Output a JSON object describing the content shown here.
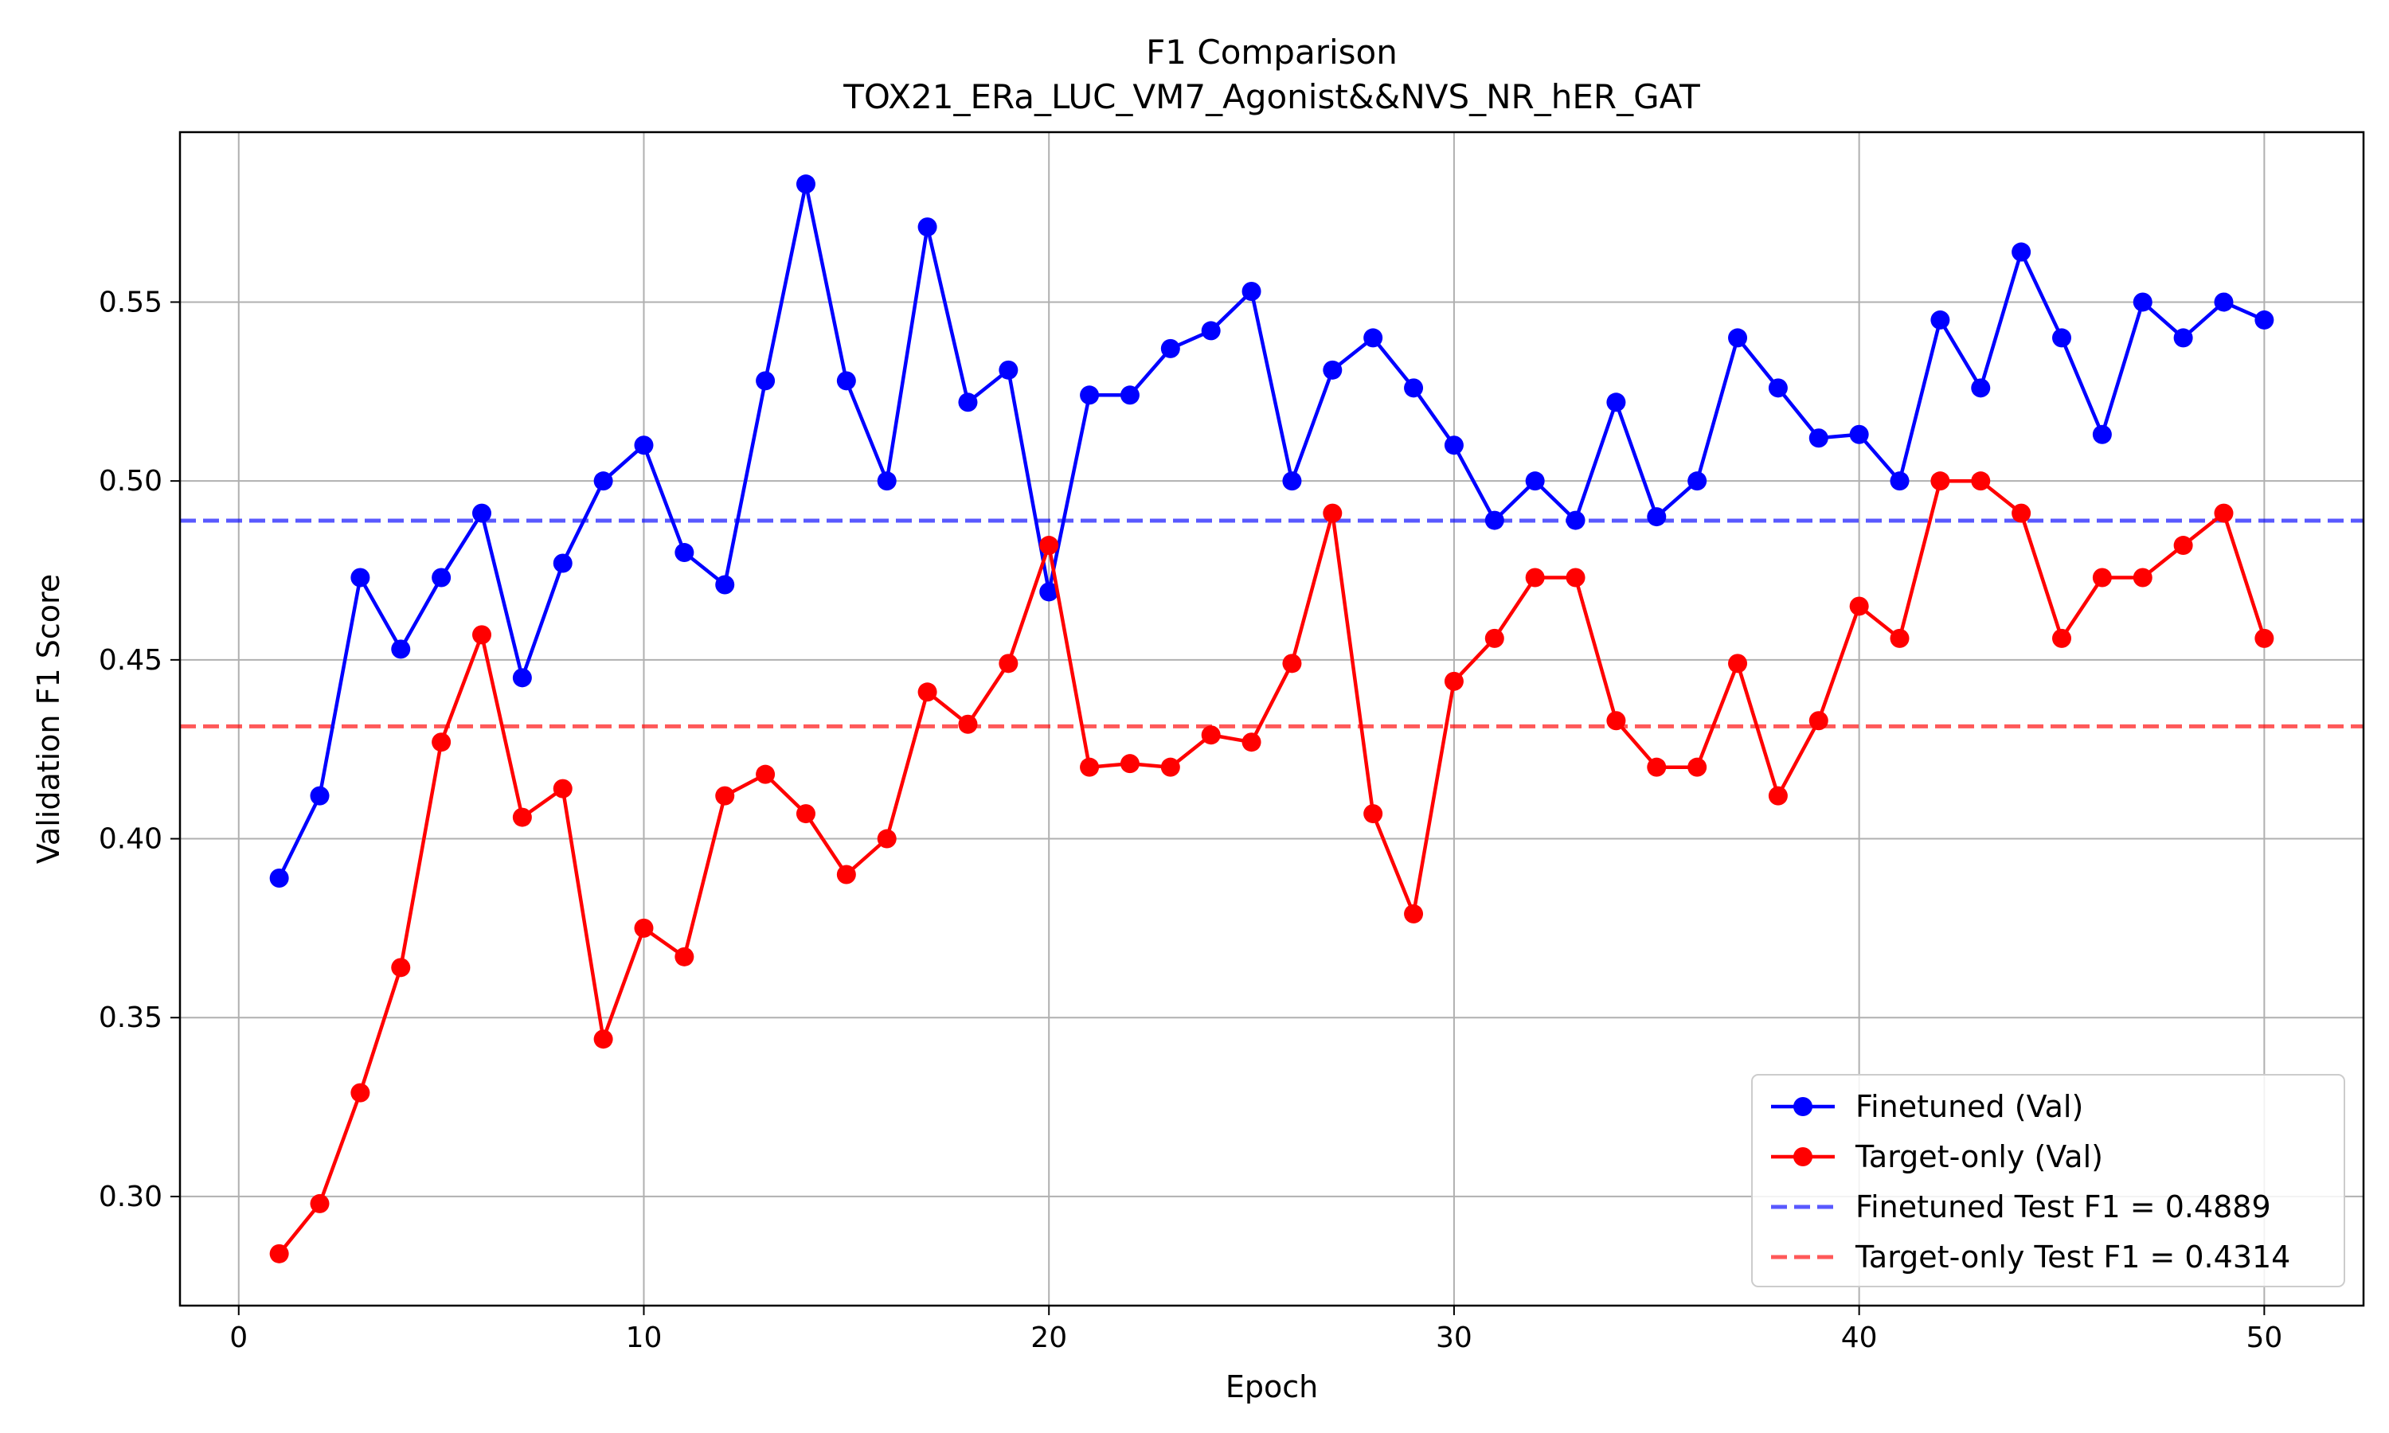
{
  "chart_data": {
    "type": "line",
    "title": "F1 Comparison",
    "subtitle": "TOX21_ERa_LUC_VM7_Agonist&&NVS_NR_hER_GAT",
    "xlabel": "Epoch",
    "ylabel": "Validation F1 Score",
    "xlim": [
      -1.45,
      52.45
    ],
    "ylim": [
      0.2695,
      0.5975
    ],
    "xticks": [
      0,
      10,
      20,
      30,
      40,
      50
    ],
    "yticks": [
      0.3,
      0.35,
      0.4,
      0.45,
      0.5,
      0.55
    ],
    "grid": true,
    "legend_position": "lower-right",
    "x": [
      1,
      2,
      3,
      4,
      5,
      6,
      7,
      8,
      9,
      10,
      11,
      12,
      13,
      14,
      15,
      16,
      17,
      18,
      19,
      20,
      21,
      22,
      23,
      24,
      25,
      26,
      27,
      28,
      29,
      30,
      31,
      32,
      33,
      34,
      35,
      36,
      37,
      38,
      39,
      40,
      41,
      42,
      43,
      44,
      45,
      46,
      47,
      48,
      49,
      50
    ],
    "series": [
      {
        "name": "Finetuned (Val)",
        "color": "#0000ff",
        "style": "line-marker",
        "values": [
          0.389,
          0.412,
          0.473,
          0.453,
          0.473,
          0.491,
          0.445,
          0.477,
          0.5,
          0.51,
          0.48,
          0.471,
          0.528,
          0.583,
          0.528,
          0.5,
          0.571,
          0.522,
          0.531,
          0.469,
          0.524,
          0.524,
          0.537,
          0.542,
          0.553,
          0.5,
          0.531,
          0.54,
          0.526,
          0.51,
          0.489,
          0.5,
          0.489,
          0.522,
          0.49,
          0.5,
          0.54,
          0.526,
          0.512,
          0.513,
          0.5,
          0.545,
          0.526,
          0.564,
          0.54,
          0.513,
          0.55,
          0.54,
          0.55,
          0.545
        ]
      },
      {
        "name": "Target-only (Val)",
        "color": "#ff0000",
        "style": "line-marker",
        "values": [
          0.284,
          0.298,
          0.329,
          0.364,
          0.427,
          0.457,
          0.406,
          0.414,
          0.344,
          0.375,
          0.367,
          0.412,
          0.418,
          0.407,
          0.39,
          0.4,
          0.441,
          0.432,
          0.449,
          0.482,
          0.42,
          0.421,
          0.42,
          0.429,
          0.427,
          0.449,
          0.491,
          0.407,
          0.379,
          0.444,
          0.456,
          0.473,
          0.473,
          0.433,
          0.42,
          0.42,
          0.449,
          0.412,
          0.433,
          0.465,
          0.456,
          0.5,
          0.5,
          0.491,
          0.456,
          0.473,
          0.473,
          0.482,
          0.491,
          0.456
        ]
      }
    ],
    "reference_lines": [
      {
        "name": "Finetuned Test F1 = 0.4889",
        "value": 0.4889,
        "color": "#0000ff"
      },
      {
        "name": "Target-only Test F1 = 0.4314",
        "value": 0.4314,
        "color": "#ff0000"
      }
    ]
  }
}
